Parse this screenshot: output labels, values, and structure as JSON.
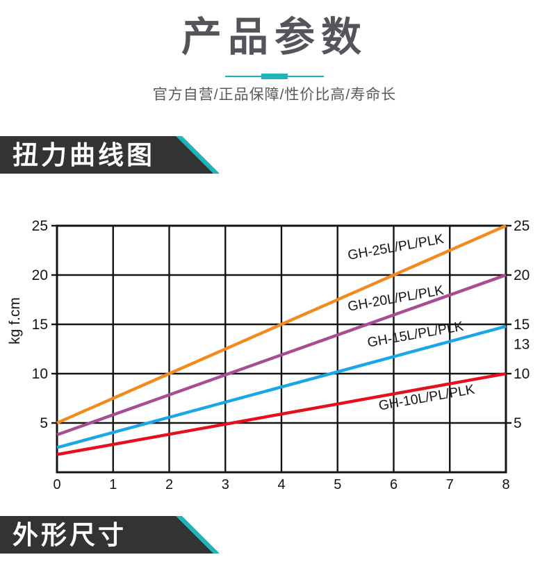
{
  "page": {
    "accent_color": "#1fb4bb",
    "banner_color": "#333336",
    "background": "#ffffff"
  },
  "header": {
    "title": "产品参数",
    "subtitle": "官方自营/正品保障/性价比高/寿命长"
  },
  "sections": {
    "torque": {
      "label": "扭力曲线图"
    },
    "dimensions": {
      "label": "外形尺寸"
    }
  },
  "chart_data": {
    "type": "line",
    "title": "",
    "xlabel": "",
    "ylabel": "kg f.cm",
    "xlim": [
      0,
      8
    ],
    "ylim": [
      0,
      25
    ],
    "grid": true,
    "x_ticks": [
      0,
      1,
      2,
      3,
      4,
      5,
      6,
      7,
      8
    ],
    "y_ticks": [
      5,
      10,
      15,
      20,
      25
    ],
    "right_axis_labels": [
      25,
      20,
      15,
      13,
      10,
      5
    ],
    "axis_color": "#141414",
    "series": [
      {
        "name": "GH-25L/PL/PLK",
        "color": "#f28a1e",
        "points": [
          [
            0,
            5.0
          ],
          [
            8,
            25.0
          ]
        ],
        "label_x": 6.05,
        "label_y": 22.4,
        "label_rotate": -10
      },
      {
        "name": "GH-20L/PL/PLK",
        "color": "#a84c93",
        "points": [
          [
            0,
            3.8
          ],
          [
            8,
            20.0
          ]
        ],
        "label_x": 6.05,
        "label_y": 17.2,
        "label_rotate": -10
      },
      {
        "name": "GH-15L/PL/PLK",
        "color": "#18a7e8",
        "points": [
          [
            0,
            2.5
          ],
          [
            8,
            14.8
          ]
        ],
        "label_x": 6.4,
        "label_y": 13.55,
        "label_rotate": -10
      },
      {
        "name": "GH-10L/PL/PLK",
        "color": "#e60f1e",
        "points": [
          [
            0,
            1.8
          ],
          [
            8,
            10.0
          ]
        ],
        "label_x": 6.6,
        "label_y": 7.15,
        "label_rotate": -10
      }
    ]
  }
}
